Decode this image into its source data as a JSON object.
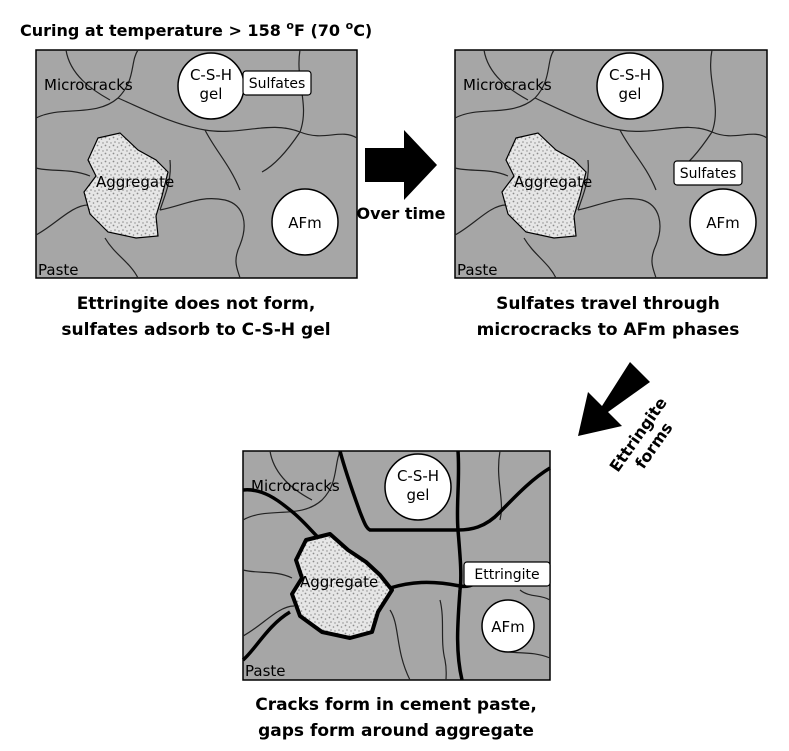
{
  "title": {
    "prefix": "Curing at temperature > 158 ",
    "deg1": "o",
    "mid": "F (70 ",
    "deg2": "o",
    "suffix": "C)"
  },
  "panel1": {
    "microcracks": "Microcracks",
    "csh_line1": "C-S-H",
    "csh_line2": "gel",
    "sulfates": "Sulfates",
    "aggregate": "Aggregate",
    "afm": "AFm",
    "paste": "Paste",
    "caption_line1": "Ettringite does not form,",
    "caption_line2": "sulfates adsorb to C-S-H gel"
  },
  "panel2": {
    "microcracks": "Microcracks",
    "csh_line1": "C-S-H",
    "csh_line2": "gel",
    "sulfates": "Sulfates",
    "aggregate": "Aggregate",
    "afm": "AFm",
    "paste": "Paste",
    "caption_line1": "Sulfates travel through",
    "caption_line2": "microcracks to AFm phases"
  },
  "panel3": {
    "microcracks": "Microcracks",
    "csh_line1": "C-S-H",
    "csh_line2": "gel",
    "ettringite": "Ettringite",
    "aggregate": "Aggregate",
    "afm": "AFm",
    "paste": "Paste",
    "caption_line1": "Cracks form in cement paste,",
    "caption_line2": "gaps form around aggregate"
  },
  "arrow1_label": "Over time",
  "arrow2_label_line1": "Ettringite",
  "arrow2_label_line2": "forms",
  "colors": {
    "paste": "#a6a6a6",
    "aggregate_fill": "#e6e6e6",
    "speckle": "#8c8c8c"
  }
}
